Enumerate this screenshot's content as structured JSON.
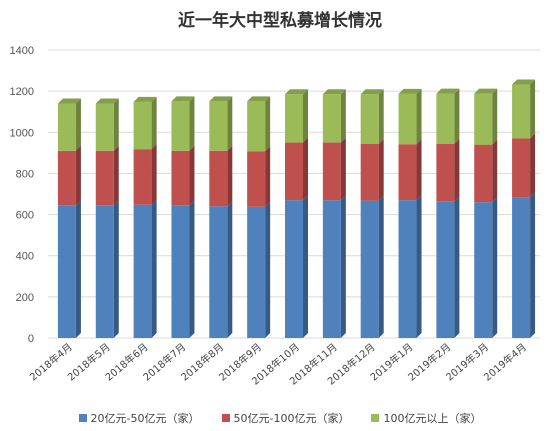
{
  "chart_data": {
    "type": "bar",
    "stacked": true,
    "title": "近一年大中型私募增长情况",
    "categories": [
      "2018年4月",
      "2018年5月",
      "2018年6月",
      "2018年7月",
      "2018年8月",
      "2018年9月",
      "2018年10月",
      "2018年11月",
      "2018年12月",
      "2019年1月",
      "2019年2月",
      "2019年3月",
      "2019年4月"
    ],
    "series": [
      {
        "name": "20亿元-50亿元（家）",
        "color": "#4F81BD",
        "values": [
          645,
          645,
          648,
          645,
          640,
          638,
          670,
          670,
          668,
          670,
          665,
          660,
          685
        ]
      },
      {
        "name": "50亿元-100亿元（家）",
        "color": "#C0504D",
        "values": [
          265,
          265,
          270,
          265,
          270,
          270,
          280,
          280,
          275,
          272,
          278,
          280,
          285
        ]
      },
      {
        "name": "100亿元以上（家）",
        "color": "#9BBB59",
        "values": [
          230,
          230,
          230,
          240,
          240,
          242,
          235,
          235,
          242,
          245,
          245,
          248,
          262
        ]
      }
    ],
    "ylim": [
      0,
      1400
    ],
    "yticks": [
      0,
      200,
      400,
      600,
      800,
      1000,
      1200,
      1400
    ],
    "grid": true,
    "legend_position": "bottom"
  }
}
